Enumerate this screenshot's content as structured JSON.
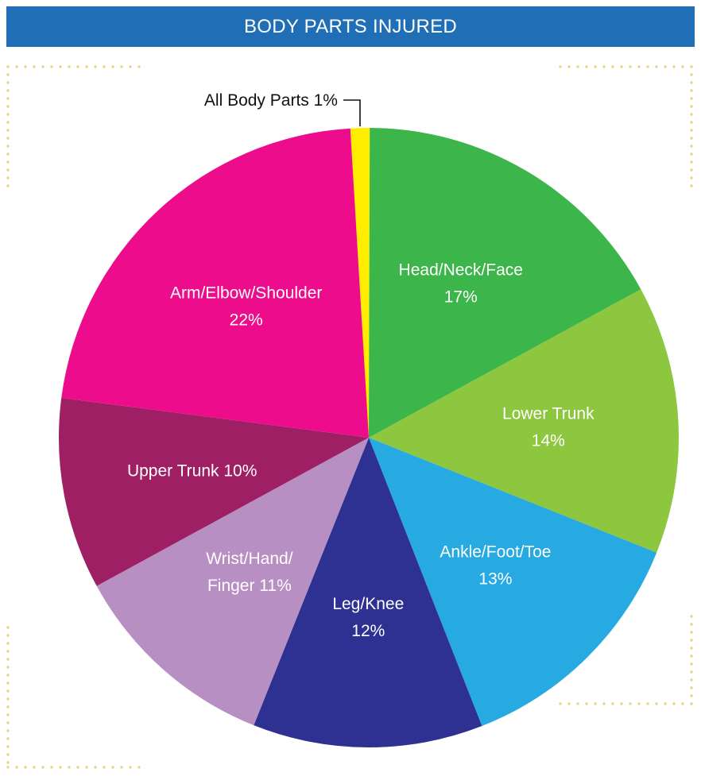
{
  "header": {
    "title": "BODY PARTS INJURED"
  },
  "chart_data": {
    "type": "pie",
    "title": "BODY PARTS INJURED",
    "slices": [
      {
        "name": "All Body Parts",
        "value": 1,
        "label_lines": [
          "All Body Parts 1%"
        ],
        "color": "#ffed00"
      },
      {
        "name": "Head/Neck/Face",
        "value": 17,
        "label_lines": [
          "Head/Neck/Face",
          "17%"
        ],
        "color": "#3cb54a"
      },
      {
        "name": "Lower Trunk",
        "value": 14,
        "label_lines": [
          "Lower Trunk",
          "14%"
        ],
        "color": "#8dc63f"
      },
      {
        "name": "Ankle/Foot/Toe",
        "value": 13,
        "label_lines": [
          "Ankle/Foot/Toe",
          "13%"
        ],
        "color": "#27aae1"
      },
      {
        "name": "Leg/Knee",
        "value": 12,
        "label_lines": [
          "Leg/Knee",
          "12%"
        ],
        "color": "#2e3192"
      },
      {
        "name": "Wrist/Hand/Finger",
        "value": 11,
        "label_lines": [
          "Wrist/Hand/",
          "Finger 11%"
        ],
        "color": "#b78fc3"
      },
      {
        "name": "Upper Trunk",
        "value": 10,
        "label_lines": [
          "Upper Trunk 10%"
        ],
        "color": "#9e1f63"
      },
      {
        "name": "Arm/Elbow/Shoulder",
        "value": 22,
        "label_lines": [
          "Arm/Elbow/Shoulder",
          "22%"
        ],
        "color": "#ec0c8c"
      }
    ],
    "start": "top, clockwise",
    "legend": "none"
  },
  "colors": {
    "header_bg": "#1f6eb6",
    "border_dots": "#e8d48a"
  }
}
